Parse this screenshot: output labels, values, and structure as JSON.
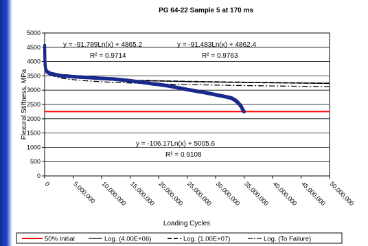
{
  "chart_data": {
    "type": "scatter",
    "title": "PG 64-22 Sample 5 at 170 ms",
    "xlabel": "Loading Cycles",
    "ylabel": "Flexural Stiffness, MPa",
    "xlim": [
      0,
      50000000
    ],
    "ylim": [
      0,
      5000
    ],
    "x_ticks": [
      "0",
      "5,000,000",
      "10,000,000",
      "15,000,000",
      "20,000,000",
      "25,000,000",
      "30,000,000",
      "35,000,000",
      "40,000,000",
      "45,000,000",
      "50,000,000"
    ],
    "y_ticks": [
      "0",
      "500",
      "1000",
      "1500",
      "2000",
      "2500",
      "3000",
      "3500",
      "4000",
      "4500",
      "5000"
    ],
    "grid": "horizontal",
    "legend_position": "bottom",
    "legend": [
      "50% Initial",
      "Log. (4.00E+06)",
      "Log. (1.00E+07)",
      "Log. (To Failure)"
    ],
    "colors": {
      "data": "#1a2a8c",
      "initial_line": "#ff0000",
      "trend": "#000000"
    },
    "reference_line": {
      "name": "50% Initial",
      "y": 2250
    },
    "trendlines": [
      {
        "name": "Log. (4.00E+06)",
        "a": -91.789,
        "b": 4865.2,
        "equation": "y = -91.789Ln(x) + 4865.2",
        "r2": "R² = 0.9714",
        "dash": "solid"
      },
      {
        "name": "Log. (1.00E+07)",
        "a": -91.483,
        "b": 4862.4,
        "equation": "y = -91.483Ln(x) + 4862.4",
        "r2": "R² = 0.9763",
        "dash": "dashed"
      },
      {
        "name": "Log. (To Failure)",
        "a": -106.17,
        "b": 5005.6,
        "equation": "y = -106.17Ln(x) + 5005.6",
        "r2": "R² = 0.9108",
        "dash": "dashdot"
      }
    ],
    "series": [
      {
        "values": [
          [
            5000,
            4550
          ],
          [
            20000,
            4300
          ],
          [
            50000,
            4050
          ],
          [
            100000,
            3850
          ],
          [
            200000,
            3720
          ],
          [
            400000,
            3650
          ],
          [
            700000,
            3610
          ],
          [
            1000000,
            3580
          ],
          [
            1500000,
            3560
          ],
          [
            2000000,
            3540
          ],
          [
            2500000,
            3520
          ],
          [
            3000000,
            3500
          ],
          [
            3500000,
            3495
          ],
          [
            4000000,
            3490
          ],
          [
            5000000,
            3470
          ],
          [
            6000000,
            3460
          ],
          [
            7000000,
            3450
          ],
          [
            8000000,
            3440
          ],
          [
            9000000,
            3420
          ],
          [
            10000000,
            3410
          ],
          [
            11000000,
            3400
          ],
          [
            12000000,
            3390
          ],
          [
            13000000,
            3370
          ],
          [
            14000000,
            3350
          ],
          [
            15000000,
            3330
          ],
          [
            16000000,
            3300
          ],
          [
            17000000,
            3280
          ],
          [
            18000000,
            3250
          ],
          [
            19000000,
            3220
          ],
          [
            20000000,
            3200
          ],
          [
            21000000,
            3170
          ],
          [
            22000000,
            3140
          ],
          [
            23000000,
            3100
          ],
          [
            24000000,
            3060
          ],
          [
            25000000,
            3020
          ],
          [
            26000000,
            2990
          ],
          [
            27000000,
            2950
          ],
          [
            28000000,
            2920
          ],
          [
            29000000,
            2880
          ],
          [
            30000000,
            2840
          ],
          [
            31000000,
            2800
          ],
          [
            32000000,
            2760
          ],
          [
            32800000,
            2720
          ],
          [
            33500000,
            2640
          ],
          [
            34000000,
            2550
          ],
          [
            34500000,
            2430
          ],
          [
            34800000,
            2300
          ],
          [
            35000000,
            2250
          ]
        ]
      }
    ]
  }
}
